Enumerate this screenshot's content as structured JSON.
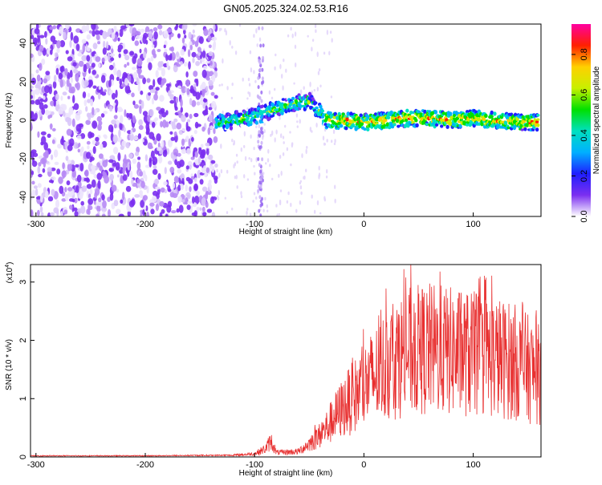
{
  "title": "GN05.2025.324.02.53.R16",
  "chart_data": [
    {
      "type": "heatmap",
      "xlabel": "Height of straight line (km)",
      "ylabel": "Frequency (Hz)",
      "xlim": [
        -305,
        162
      ],
      "ylim": [
        -50,
        50
      ],
      "xticks": [
        -300,
        -200,
        -100,
        0,
        100
      ],
      "yticks": [
        -40,
        -20,
        0,
        20,
        40
      ],
      "colorbar": {
        "label": "Normalized spectral amplitude",
        "ticks": [
          "0.0",
          "0.2",
          "0.4",
          "0.6",
          "0.8"
        ],
        "range": [
          0,
          0.95
        ],
        "colors": [
          "#ffffff",
          "#7b2ff0",
          "#1f1fff",
          "#00b0ff",
          "#00e0c0",
          "#00e000",
          "#c8f000",
          "#ffd000",
          "#ff2000",
          "#ff00a0"
        ]
      },
      "features": {
        "noise_region_x": [
          -305,
          -135
        ],
        "ridge": {
          "x": [
            -135,
            -120,
            -100,
            -80,
            -60,
            -50,
            -40,
            -35,
            -20,
            0,
            20,
            40,
            60,
            80,
            100,
            120,
            140,
            160
          ],
          "y": [
            -2,
            0,
            2,
            6,
            9,
            10,
            4,
            0,
            0,
            -1,
            0,
            1,
            1,
            0,
            1,
            0,
            -1,
            -1
          ]
        }
      }
    },
    {
      "type": "line",
      "xlabel": "Height of straight line (km)",
      "ylabel": "SNR (10 * v/v)",
      "scale_label": "(x10",
      "scale_exp": "4",
      "xlim": [
        -305,
        162
      ],
      "ylim": [
        0,
        3.3
      ],
      "xticks": [
        -300,
        -200,
        -100,
        0,
        100
      ],
      "yticks": [
        0,
        1,
        2,
        3
      ],
      "color": "#e83030",
      "envelope": {
        "x": [
          -305,
          -200,
          -120,
          -100,
          -90,
          -85,
          -80,
          -60,
          -40,
          -20,
          0,
          20,
          40,
          60,
          80,
          100,
          120,
          140,
          162
        ],
        "y": [
          0.02,
          0.02,
          0.03,
          0.06,
          0.15,
          0.3,
          0.08,
          0.1,
          0.4,
          0.9,
          1.3,
          1.7,
          1.95,
          2.0,
          1.95,
          1.9,
          1.85,
          1.75,
          1.5
        ]
      }
    }
  ]
}
